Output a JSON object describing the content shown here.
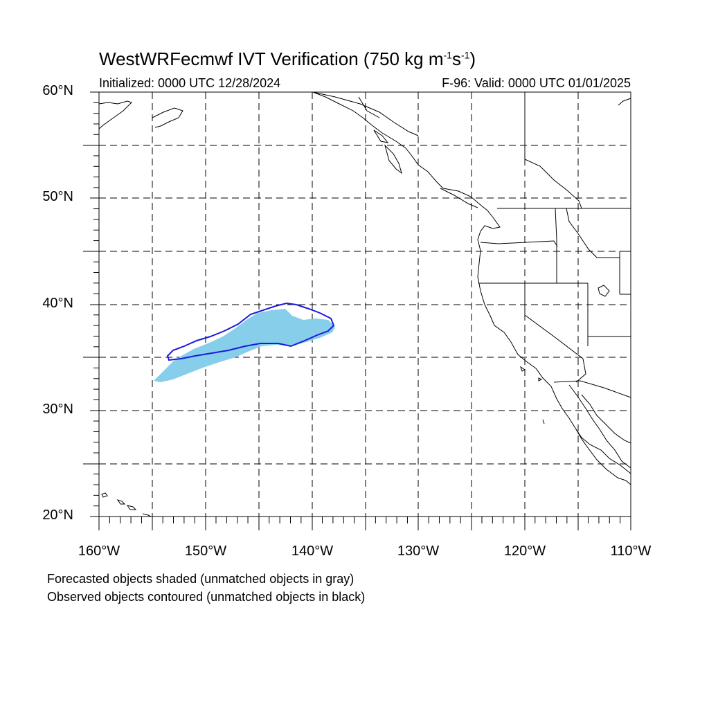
{
  "title": {
    "main": "WestWRFecmwf IVT Verification (750 kg m",
    "sup1": "-1",
    "mid": "s",
    "sup2": "-1",
    "end": ")"
  },
  "initialized": "Initialized: 0000 UTC 12/28/2024",
  "valid": "F-96: Valid: 0000 UTC 01/01/2025",
  "lat_labels": [
    "60°N",
    "50°N",
    "40°N",
    "30°N",
    "20°N"
  ],
  "lon_labels": [
    "160°W",
    "150°W",
    "140°W",
    "130°W",
    "120°W",
    "110°W"
  ],
  "legend": {
    "forecast": "Forecasted objects shaded (unmatched objects in gray)",
    "observed": "Observed objects contoured (unmatched objects in black)"
  },
  "colors": {
    "forecast_fill": "#87ceeb",
    "observed_contour": "#1a1adc",
    "coastline": "#000000",
    "grid": "#000000"
  },
  "map_extent": {
    "lon_min": -160,
    "lon_max": -110,
    "lat_min": 20,
    "lat_max": 60
  }
}
